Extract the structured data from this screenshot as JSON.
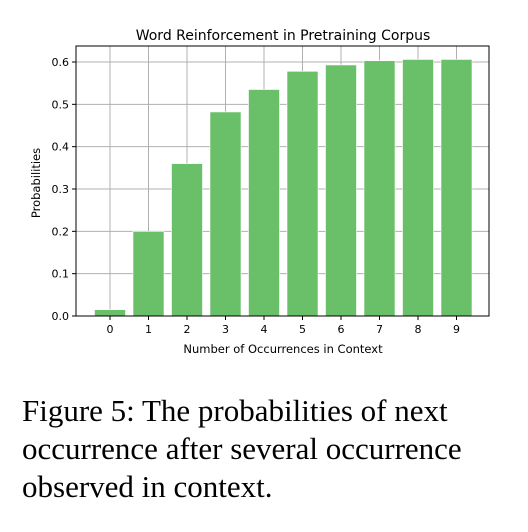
{
  "chart_data": {
    "type": "bar",
    "title": "Word Reinforcement in Pretraining Corpus",
    "xlabel": "Number of Occurrences in Context",
    "ylabel": "Probabilities",
    "categories": [
      "0",
      "1",
      "2",
      "3",
      "4",
      "5",
      "6",
      "7",
      "8",
      "9"
    ],
    "values": [
      0.015,
      0.2,
      0.36,
      0.482,
      0.535,
      0.578,
      0.593,
      0.603,
      0.606,
      0.606
    ],
    "ylim": [
      0,
      0.6
    ],
    "yticks": [
      "0.0",
      "0.1",
      "0.2",
      "0.3",
      "0.4",
      "0.5",
      "0.6"
    ],
    "grid": true,
    "bar_color": "#6abf69",
    "bar_edge_color": "#ffffff"
  },
  "caption": "Figure 5: The probabilities of next occurrence after several occurrence observed in context."
}
